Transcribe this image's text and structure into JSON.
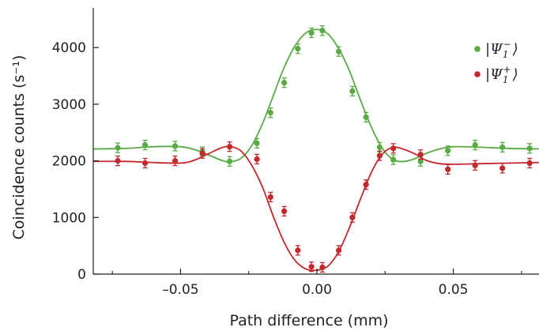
{
  "chart_data": {
    "type": "scatter",
    "title": "",
    "xlabel": "Path difference (mm)",
    "ylabel": "Coincidence counts (s⁻¹)",
    "xlim": [
      -0.082,
      0.082
    ],
    "ylim": [
      0,
      4700
    ],
    "x_ticks": [
      -0.05,
      0.0,
      0.05
    ],
    "x_tick_labels": [
      "–0.05",
      "0.00",
      "0.05"
    ],
    "x_minor_ticks": [
      -0.075,
      -0.025,
      0.025,
      0.075
    ],
    "y_ticks": [
      0,
      1000,
      2000,
      3000,
      4000
    ],
    "y_tick_labels": [
      "0",
      "1000",
      "2000",
      "3000",
      "4000"
    ],
    "grid": false,
    "legend_position": "top-right",
    "series": [
      {
        "name": "|Ψ₁⁻⟩",
        "legend_base": "|Ψ",
        "legend_sub": "1",
        "legend_sup": "−",
        "legend_end": "⟩",
        "color": "#5aaa46",
        "x": [
          -0.073,
          -0.063,
          -0.052,
          -0.042,
          -0.032,
          -0.022,
          -0.017,
          -0.012,
          -0.007,
          -0.002,
          0.002,
          0.008,
          0.013,
          0.018,
          0.023,
          0.028,
          0.038,
          0.048,
          0.058,
          0.068,
          0.078
        ],
        "y": [
          2230,
          2280,
          2260,
          2160,
          1990,
          2310,
          2850,
          3380,
          3980,
          4260,
          4300,
          3930,
          3230,
          2770,
          2240,
          2020,
          1990,
          2180,
          2280,
          2240,
          2220
        ],
        "fit_x": [
          -0.082,
          -0.07,
          -0.06,
          -0.05,
          -0.045,
          -0.04,
          -0.035,
          -0.032,
          -0.028,
          -0.024,
          -0.02,
          -0.016,
          -0.012,
          -0.008,
          -0.004,
          0.0,
          0.004,
          0.008,
          0.012,
          0.016,
          0.02,
          0.024,
          0.028,
          0.032,
          0.036,
          0.04,
          0.045,
          0.05,
          0.06,
          0.07,
          0.082
        ],
        "fit_y": [
          2210,
          2220,
          2250,
          2250,
          2200,
          2110,
          2010,
          1985,
          2040,
          2260,
          2650,
          3150,
          3650,
          4030,
          4260,
          4320,
          4240,
          3980,
          3580,
          3070,
          2590,
          2220,
          2020,
          1990,
          2040,
          2130,
          2210,
          2250,
          2240,
          2220,
          2210
        ]
      },
      {
        "name": "|Ψ₁⁺⟩",
        "legend_base": "|Ψ",
        "legend_sub": "1",
        "legend_sup": "+",
        "legend_end": "⟩",
        "color": "#c4282d",
        "x": [
          -0.073,
          -0.063,
          -0.052,
          -0.042,
          -0.032,
          -0.022,
          -0.017,
          -0.012,
          -0.007,
          -0.002,
          0.002,
          0.008,
          0.013,
          0.018,
          0.023,
          0.028,
          0.038,
          0.048,
          0.058,
          0.068,
          0.078
        ],
        "y": [
          2000,
          1960,
          2000,
          2130,
          2250,
          2030,
          1360,
          1110,
          420,
          130,
          120,
          420,
          1000,
          1580,
          2090,
          2220,
          2110,
          1850,
          1920,
          1870,
          1960
        ],
        "fit_x": [
          -0.082,
          -0.07,
          -0.06,
          -0.05,
          -0.045,
          -0.04,
          -0.035,
          -0.032,
          -0.028,
          -0.024,
          -0.02,
          -0.016,
          -0.012,
          -0.008,
          -0.004,
          0.0,
          0.004,
          0.008,
          0.012,
          0.016,
          0.02,
          0.024,
          0.028,
          0.032,
          0.036,
          0.04,
          0.045,
          0.05,
          0.06,
          0.07,
          0.082
        ],
        "fit_y": [
          1990,
          1990,
          1970,
          1960,
          2010,
          2120,
          2230,
          2250,
          2180,
          1930,
          1540,
          1020,
          560,
          240,
          90,
          70,
          140,
          400,
          830,
          1330,
          1800,
          2120,
          2240,
          2200,
          2120,
          2010,
          1950,
          1940,
          1950,
          1960,
          1970
        ]
      }
    ]
  }
}
